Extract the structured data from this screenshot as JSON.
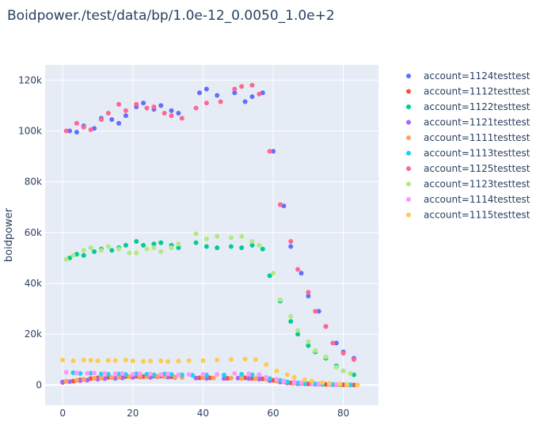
{
  "chart_data": {
    "type": "scatter",
    "title": "Boidpower./test/data/bp/1.0e-12_0.0050_1.0e+2",
    "xlabel": "",
    "ylabel": "boidpower",
    "xlim": [
      -5,
      90
    ],
    "ylim": [
      -8000,
      126000
    ],
    "x_ticks": [
      0,
      20,
      40,
      60,
      80
    ],
    "x_tick_labels": [
      "0",
      "20",
      "40",
      "60",
      "80"
    ],
    "y_ticks": [
      0,
      20000,
      40000,
      60000,
      80000,
      100000,
      120000
    ],
    "y_tick_labels": [
      "0",
      "20k",
      "40k",
      "60k",
      "80k",
      "100k",
      "120k"
    ],
    "grid": true,
    "legend_position": "right",
    "series": [
      {
        "name": "account=1124testtest",
        "color": "#636efa",
        "points": [
          [
            2,
            100000
          ],
          [
            4,
            99500
          ],
          [
            6,
            102000
          ],
          [
            9,
            101000
          ],
          [
            11,
            105000
          ],
          [
            14,
            104500
          ],
          [
            16,
            103000
          ],
          [
            18,
            106000
          ],
          [
            21,
            109500
          ],
          [
            23,
            111000
          ],
          [
            26,
            108500
          ],
          [
            28,
            110000
          ],
          [
            31,
            108000
          ],
          [
            33,
            107000
          ],
          [
            39,
            115000
          ],
          [
            41,
            116500
          ],
          [
            44,
            114000
          ],
          [
            49,
            115000
          ],
          [
            52,
            111500
          ],
          [
            54,
            113500
          ],
          [
            57,
            115000
          ],
          [
            60,
            92000
          ],
          [
            63,
            70500
          ],
          [
            65,
            54500
          ],
          [
            68,
            44000
          ],
          [
            70,
            35000
          ],
          [
            73,
            29000
          ],
          [
            75,
            23000
          ],
          [
            78,
            16500
          ],
          [
            80,
            13000
          ],
          [
            83,
            10500
          ]
        ]
      },
      {
        "name": "account=1112testtest",
        "color": "#ef553b",
        "points": [
          [
            0,
            1000
          ],
          [
            3,
            1500
          ],
          [
            5,
            2000
          ],
          [
            8,
            2500
          ],
          [
            10,
            2800
          ],
          [
            13,
            3000
          ],
          [
            16,
            3200
          ],
          [
            18,
            3300
          ],
          [
            21,
            3400
          ],
          [
            23,
            3300
          ],
          [
            26,
            3500
          ],
          [
            28,
            3500
          ],
          [
            31,
            3200
          ],
          [
            34,
            3000
          ],
          [
            39,
            2800
          ],
          [
            42,
            2800
          ],
          [
            47,
            2600
          ],
          [
            52,
            2800
          ],
          [
            54,
            2600
          ],
          [
            57,
            2400
          ],
          [
            60,
            1800
          ],
          [
            63,
            1200
          ],
          [
            65,
            800
          ],
          [
            68,
            600
          ],
          [
            70,
            400
          ],
          [
            73,
            300
          ],
          [
            75,
            200
          ],
          [
            78,
            100
          ],
          [
            80,
            50
          ],
          [
            83,
            0
          ]
        ]
      },
      {
        "name": "account=1122testtest",
        "color": "#00cc96",
        "points": [
          [
            2,
            50000
          ],
          [
            4,
            51500
          ],
          [
            6,
            51000
          ],
          [
            9,
            52500
          ],
          [
            11,
            53500
          ],
          [
            14,
            53000
          ],
          [
            16,
            54000
          ],
          [
            18,
            55000
          ],
          [
            21,
            56500
          ],
          [
            23,
            55000
          ],
          [
            26,
            55500
          ],
          [
            28,
            56000
          ],
          [
            31,
            55000
          ],
          [
            33,
            54000
          ],
          [
            38,
            56000
          ],
          [
            41,
            54500
          ],
          [
            44,
            54000
          ],
          [
            48,
            54500
          ],
          [
            51,
            54000
          ],
          [
            54,
            55000
          ],
          [
            57,
            53500
          ],
          [
            59,
            43000
          ],
          [
            62,
            33000
          ],
          [
            65,
            25000
          ],
          [
            67,
            20000
          ],
          [
            70,
            15500
          ],
          [
            72,
            13000
          ],
          [
            75,
            10500
          ],
          [
            78,
            7500
          ],
          [
            80,
            5500
          ],
          [
            83,
            4000
          ]
        ]
      },
      {
        "name": "account=1121testtest",
        "color": "#ab63fa",
        "points": [
          [
            0,
            1200
          ],
          [
            2,
            1300
          ],
          [
            5,
            1700
          ],
          [
            7,
            1900
          ],
          [
            10,
            2300
          ],
          [
            12,
            2500
          ],
          [
            15,
            2600
          ],
          [
            17,
            2800
          ],
          [
            20,
            3000
          ],
          [
            22,
            3100
          ],
          [
            25,
            3000
          ],
          [
            27,
            3200
          ],
          [
            30,
            3100
          ],
          [
            32,
            2900
          ],
          [
            38,
            2700
          ],
          [
            41,
            2600
          ],
          [
            46,
            2500
          ],
          [
            50,
            2700
          ],
          [
            53,
            2500
          ],
          [
            56,
            2300
          ],
          [
            59,
            1700
          ],
          [
            62,
            1100
          ],
          [
            64,
            800
          ],
          [
            67,
            500
          ],
          [
            69,
            400
          ],
          [
            72,
            300
          ],
          [
            74,
            200
          ],
          [
            77,
            100
          ],
          [
            79,
            50
          ],
          [
            82,
            0
          ]
        ]
      },
      {
        "name": "account=1111testtest",
        "color": "#ffa15a",
        "points": [
          [
            1,
            1500
          ],
          [
            4,
            1800
          ],
          [
            6,
            2200
          ],
          [
            9,
            2600
          ],
          [
            11,
            2700
          ],
          [
            14,
            2900
          ],
          [
            16,
            3000
          ],
          [
            19,
            3200
          ],
          [
            22,
            3300
          ],
          [
            24,
            3200
          ],
          [
            27,
            3400
          ],
          [
            29,
            3300
          ],
          [
            32,
            3100
          ],
          [
            34,
            3000
          ],
          [
            40,
            2900
          ],
          [
            43,
            2700
          ],
          [
            48,
            2700
          ],
          [
            51,
            2600
          ],
          [
            55,
            2500
          ],
          [
            58,
            2300
          ],
          [
            61,
            1500
          ],
          [
            63,
            1100
          ],
          [
            66,
            700
          ],
          [
            69,
            500
          ],
          [
            71,
            400
          ],
          [
            74,
            250
          ],
          [
            76,
            150
          ],
          [
            79,
            80
          ],
          [
            81,
            40
          ],
          [
            84,
            0
          ]
        ]
      },
      {
        "name": "account=1113testtest",
        "color": "#19d3f3",
        "points": [
          [
            3,
            4800
          ],
          [
            5,
            4500
          ],
          [
            8,
            4600
          ],
          [
            11,
            4300
          ],
          [
            13,
            4200
          ],
          [
            16,
            4300
          ],
          [
            18,
            4100
          ],
          [
            21,
            4400
          ],
          [
            24,
            4200
          ],
          [
            26,
            4000
          ],
          [
            29,
            4300
          ],
          [
            31,
            4100
          ],
          [
            34,
            4000
          ],
          [
            37,
            3800
          ],
          [
            41,
            3900
          ],
          [
            46,
            3900
          ],
          [
            51,
            4200
          ],
          [
            54,
            4000
          ],
          [
            56,
            3800
          ],
          [
            59,
            2500
          ],
          [
            62,
            1800
          ],
          [
            64,
            1200
          ],
          [
            67,
            800
          ],
          [
            69,
            600
          ],
          [
            72,
            400
          ],
          [
            74,
            300
          ],
          [
            77,
            200
          ],
          [
            79,
            100
          ],
          [
            82,
            50
          ]
        ]
      },
      {
        "name": "account=1125testtest",
        "color": "#ff6692",
        "points": [
          [
            1,
            100000
          ],
          [
            4,
            103000
          ],
          [
            6,
            101500
          ],
          [
            8,
            100500
          ],
          [
            11,
            104500
          ],
          [
            13,
            107000
          ],
          [
            16,
            110500
          ],
          [
            18,
            108000
          ],
          [
            21,
            110500
          ],
          [
            24,
            109000
          ],
          [
            26,
            109500
          ],
          [
            29,
            107000
          ],
          [
            31,
            106000
          ],
          [
            34,
            105000
          ],
          [
            38,
            109000
          ],
          [
            41,
            111000
          ],
          [
            45,
            111500
          ],
          [
            49,
            116500
          ],
          [
            51,
            117500
          ],
          [
            54,
            118000
          ],
          [
            56,
            114500
          ],
          [
            59,
            92000
          ],
          [
            62,
            71000
          ],
          [
            65,
            56500
          ],
          [
            67,
            45500
          ],
          [
            70,
            36500
          ],
          [
            72,
            29000
          ],
          [
            75,
            23000
          ],
          [
            77,
            16500
          ],
          [
            80,
            12500
          ],
          [
            83,
            10000
          ]
        ]
      },
      {
        "name": "account=1123testtest",
        "color": "#b6e880",
        "points": [
          [
            1,
            49500
          ],
          [
            3,
            51000
          ],
          [
            6,
            53000
          ],
          [
            8,
            54000
          ],
          [
            11,
            53000
          ],
          [
            13,
            54500
          ],
          [
            16,
            53500
          ],
          [
            19,
            52000
          ],
          [
            21,
            52000
          ],
          [
            24,
            53500
          ],
          [
            26,
            54000
          ],
          [
            28,
            52500
          ],
          [
            31,
            54000
          ],
          [
            33,
            55500
          ],
          [
            38,
            59500
          ],
          [
            41,
            57500
          ],
          [
            44,
            58500
          ],
          [
            48,
            58000
          ],
          [
            51,
            58500
          ],
          [
            54,
            56500
          ],
          [
            56,
            55000
          ],
          [
            60,
            44000
          ],
          [
            62,
            33500
          ],
          [
            65,
            27000
          ],
          [
            67,
            21500
          ],
          [
            70,
            17000
          ],
          [
            72,
            13500
          ],
          [
            75,
            11000
          ],
          [
            78,
            7000
          ],
          [
            80,
            5500
          ],
          [
            82,
            4500
          ]
        ]
      },
      {
        "name": "account=1114testtest",
        "color": "#ff97ff",
        "points": [
          [
            1,
            5000
          ],
          [
            4,
            4700
          ],
          [
            7,
            4600
          ],
          [
            9,
            4700
          ],
          [
            12,
            4500
          ],
          [
            15,
            4400
          ],
          [
            17,
            4500
          ],
          [
            20,
            4200
          ],
          [
            22,
            4400
          ],
          [
            25,
            4300
          ],
          [
            28,
            4100
          ],
          [
            30,
            4300
          ],
          [
            33,
            4000
          ],
          [
            36,
            4100
          ],
          [
            40,
            4200
          ],
          [
            44,
            4100
          ],
          [
            49,
            4500
          ],
          [
            53,
            4300
          ],
          [
            56,
            4100
          ],
          [
            58,
            3000
          ],
          [
            61,
            2200
          ],
          [
            63,
            1600
          ],
          [
            66,
            1100
          ],
          [
            68,
            800
          ],
          [
            71,
            500
          ],
          [
            73,
            400
          ],
          [
            76,
            300
          ],
          [
            78,
            200
          ],
          [
            81,
            100
          ]
        ]
      },
      {
        "name": "account=1115testtest",
        "color": "#fecb52",
        "points": [
          [
            0,
            9800
          ],
          [
            3,
            9500
          ],
          [
            6,
            9800
          ],
          [
            8,
            9700
          ],
          [
            10,
            9500
          ],
          [
            13,
            9700
          ],
          [
            15,
            9600
          ],
          [
            18,
            9800
          ],
          [
            20,
            9500
          ],
          [
            23,
            9300
          ],
          [
            25,
            9400
          ],
          [
            28,
            9500
          ],
          [
            30,
            9200
          ],
          [
            33,
            9400
          ],
          [
            36,
            9600
          ],
          [
            40,
            9600
          ],
          [
            44,
            9800
          ],
          [
            48,
            10000
          ],
          [
            52,
            10200
          ],
          [
            55,
            10000
          ],
          [
            58,
            8000
          ],
          [
            61,
            5500
          ],
          [
            64,
            4000
          ],
          [
            66,
            3000
          ],
          [
            69,
            2000
          ],
          [
            71,
            1500
          ],
          [
            74,
            900
          ],
          [
            76,
            600
          ],
          [
            79,
            300
          ],
          [
            81,
            150
          ],
          [
            84,
            0
          ]
        ]
      }
    ]
  }
}
